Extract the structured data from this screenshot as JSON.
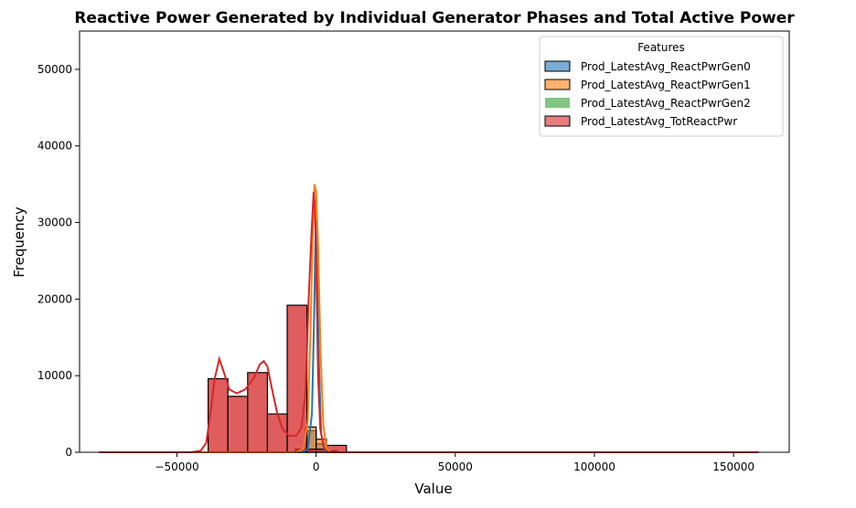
{
  "chart_data": {
    "type": "histogram",
    "title": "Reactive Power Generated by Individual Generator Phases and Total Active Power",
    "xlabel": "Value",
    "ylabel": "Frequency",
    "xlim": [
      -85000,
      170000
    ],
    "ylim": [
      0,
      55000
    ],
    "x_ticks": [
      -50000,
      0,
      50000,
      100000,
      150000
    ],
    "x_tick_labels": [
      "−50000",
      "0",
      "50000",
      "100000",
      "150000"
    ],
    "y_ticks": [
      0,
      10000,
      20000,
      30000,
      40000,
      50000
    ],
    "y_tick_labels": [
      "0",
      "10000",
      "20000",
      "30000",
      "40000",
      "50000"
    ],
    "grid": false,
    "legend": {
      "title": "Features",
      "placement": "top-right"
    },
    "series": [
      {
        "name": "Prod_LatestAvg_ReactPwrGen0",
        "color": "#1f77b4",
        "bins": [
          [
            -7400,
            -3700,
            300
          ],
          [
            -3700,
            0,
            2800
          ],
          [
            0,
            3700,
            1100
          ]
        ],
        "kde": [
          [
            -78000,
            0
          ],
          [
            -5000,
            0
          ],
          [
            -3000,
            400
          ],
          [
            -1500,
            5000
          ],
          [
            -700,
            18000
          ],
          [
            -200,
            29000
          ],
          [
            0,
            30500
          ],
          [
            300,
            28000
          ],
          [
            900,
            13000
          ],
          [
            1800,
            2500
          ],
          [
            3000,
            200
          ],
          [
            4500,
            0
          ],
          [
            159000,
            0
          ]
        ]
      },
      {
        "name": "Prod_LatestAvg_ReactPwrGen1",
        "color": "#ff7f0e",
        "bins": [
          [
            -7400,
            -3700,
            400
          ],
          [
            -3700,
            0,
            3300
          ],
          [
            0,
            3700,
            1700
          ],
          [
            3700,
            7400,
            200
          ]
        ],
        "kde": [
          [
            -78000,
            0
          ],
          [
            -7000,
            0
          ],
          [
            -4500,
            500
          ],
          [
            -3000,
            4000
          ],
          [
            -2000,
            16000
          ],
          [
            -1200,
            29000
          ],
          [
            -600,
            35000
          ],
          [
            0,
            34000
          ],
          [
            700,
            27000
          ],
          [
            1600,
            13000
          ],
          [
            2600,
            3500
          ],
          [
            3800,
            400
          ],
          [
            5500,
            0
          ],
          [
            159000,
            0
          ]
        ]
      },
      {
        "name": "Prod_LatestAvg_ReactPwrGen2",
        "color": "#2ca02c",
        "bins": [],
        "kde": []
      },
      {
        "name": "Prod_LatestAvg_TotReactPwr",
        "color": "#d62728",
        "bins": [
          [
            -38800,
            -31700,
            9600
          ],
          [
            -31700,
            -24600,
            7300
          ],
          [
            -24600,
            -17500,
            10400
          ],
          [
            -17500,
            -10400,
            5000
          ],
          [
            -10400,
            -3300,
            19200
          ],
          [
            -3300,
            3800,
            400
          ],
          [
            3800,
            10900,
            900
          ]
        ],
        "kde": [
          [
            -78000,
            0
          ],
          [
            -45000,
            0
          ],
          [
            -41500,
            200
          ],
          [
            -39500,
            1200
          ],
          [
            -38200,
            4500
          ],
          [
            -36500,
            9500
          ],
          [
            -34800,
            12200
          ],
          [
            -33200,
            10500
          ],
          [
            -31200,
            8200
          ],
          [
            -28500,
            7700
          ],
          [
            -25500,
            8200
          ],
          [
            -22500,
            9600
          ],
          [
            -20200,
            11500
          ],
          [
            -18800,
            11900
          ],
          [
            -17500,
            11200
          ],
          [
            -16000,
            8500
          ],
          [
            -14000,
            5100
          ],
          [
            -12000,
            3000
          ],
          [
            -9500,
            2100
          ],
          [
            -7000,
            2200
          ],
          [
            -5200,
            3300
          ],
          [
            -3800,
            8000
          ],
          [
            -2700,
            20000
          ],
          [
            -1600,
            29000
          ],
          [
            -900,
            34000
          ],
          [
            -500,
            32500
          ],
          [
            0,
            25000
          ],
          [
            700,
            10000
          ],
          [
            1500,
            3000
          ],
          [
            2800,
            600
          ],
          [
            4200,
            0
          ],
          [
            159000,
            0
          ]
        ]
      }
    ]
  }
}
